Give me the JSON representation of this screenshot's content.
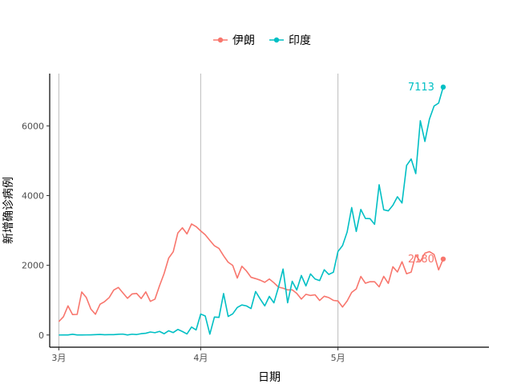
{
  "chart_data": {
    "type": "line",
    "xlabel": "日期",
    "ylabel": "新增确诊病例",
    "x_ticks": [
      {
        "date": "2020-03-01",
        "label": "3月"
      },
      {
        "date": "2020-04-01",
        "label": "4月"
      },
      {
        "date": "2020-05-01",
        "label": "5月"
      }
    ],
    "y_ticks": [
      0,
      2000,
      4000,
      6000
    ],
    "x_range": [
      "2020-02-28",
      "2020-06-03"
    ],
    "ylim": [
      -350,
      7500
    ],
    "grid": "vertical major lines only",
    "legend_position": "top",
    "series": [
      {
        "name": "伊朗",
        "color": "#F8766D",
        "end_label": "2180",
        "points": [
          [
            "2020-03-01",
            385
          ],
          [
            "2020-03-02",
            523
          ],
          [
            "2020-03-03",
            835
          ],
          [
            "2020-03-04",
            586
          ],
          [
            "2020-03-05",
            591
          ],
          [
            "2020-03-06",
            1234
          ],
          [
            "2020-03-07",
            1076
          ],
          [
            "2020-03-08",
            743
          ],
          [
            "2020-03-09",
            595
          ],
          [
            "2020-03-10",
            881
          ],
          [
            "2020-03-11",
            958
          ],
          [
            "2020-03-12",
            1075
          ],
          [
            "2020-03-13",
            1289
          ],
          [
            "2020-03-14",
            1365
          ],
          [
            "2020-03-15",
            1209
          ],
          [
            "2020-03-16",
            1053
          ],
          [
            "2020-03-17",
            1178
          ],
          [
            "2020-03-18",
            1192
          ],
          [
            "2020-03-19",
            1046
          ],
          [
            "2020-03-20",
            1237
          ],
          [
            "2020-03-21",
            966
          ],
          [
            "2020-03-22",
            1028
          ],
          [
            "2020-03-23",
            1411
          ],
          [
            "2020-03-24",
            1762
          ],
          [
            "2020-03-25",
            2206
          ],
          [
            "2020-03-26",
            2389
          ],
          [
            "2020-03-27",
            2926
          ],
          [
            "2020-03-28",
            3076
          ],
          [
            "2020-03-29",
            2901
          ],
          [
            "2020-03-30",
            3186
          ],
          [
            "2020-03-31",
            3110
          ],
          [
            "2020-04-01",
            2987
          ],
          [
            "2020-04-02",
            2875
          ],
          [
            "2020-04-03",
            2715
          ],
          [
            "2020-04-04",
            2560
          ],
          [
            "2020-04-05",
            2483
          ],
          [
            "2020-04-06",
            2274
          ],
          [
            "2020-04-07",
            2089
          ],
          [
            "2020-04-08",
            1997
          ],
          [
            "2020-04-09",
            1634
          ],
          [
            "2020-04-10",
            1972
          ],
          [
            "2020-04-11",
            1837
          ],
          [
            "2020-04-12",
            1657
          ],
          [
            "2020-04-13",
            1617
          ],
          [
            "2020-04-14",
            1574
          ],
          [
            "2020-04-15",
            1512
          ],
          [
            "2020-04-16",
            1606
          ],
          [
            "2020-04-17",
            1499
          ],
          [
            "2020-04-18",
            1374
          ],
          [
            "2020-04-19",
            1343
          ],
          [
            "2020-04-20",
            1294
          ],
          [
            "2020-04-21",
            1297
          ],
          [
            "2020-04-22",
            1194
          ],
          [
            "2020-04-23",
            1030
          ],
          [
            "2020-04-24",
            1168
          ],
          [
            "2020-04-25",
            1134
          ],
          [
            "2020-04-26",
            1153
          ],
          [
            "2020-04-27",
            991
          ],
          [
            "2020-04-28",
            1112
          ],
          [
            "2020-04-29",
            1073
          ],
          [
            "2020-04-30",
            993
          ],
          [
            "2020-05-01",
            976
          ],
          [
            "2020-05-02",
            802
          ],
          [
            "2020-05-03",
            976
          ],
          [
            "2020-05-04",
            1223
          ],
          [
            "2020-05-05",
            1323
          ],
          [
            "2020-05-06",
            1680
          ],
          [
            "2020-05-07",
            1485
          ],
          [
            "2020-05-08",
            1529
          ],
          [
            "2020-05-09",
            1529
          ],
          [
            "2020-05-10",
            1383
          ],
          [
            "2020-05-11",
            1683
          ],
          [
            "2020-05-12",
            1481
          ],
          [
            "2020-05-13",
            1958
          ],
          [
            "2020-05-14",
            1808
          ],
          [
            "2020-05-15",
            2102
          ],
          [
            "2020-05-16",
            1757
          ],
          [
            "2020-05-17",
            1806
          ],
          [
            "2020-05-18",
            2294
          ],
          [
            "2020-05-19",
            2111
          ],
          [
            "2020-05-20",
            2346
          ],
          [
            "2020-05-21",
            2392
          ],
          [
            "2020-05-22",
            2311
          ],
          [
            "2020-05-23",
            1869
          ],
          [
            "2020-05-24",
            2180
          ]
        ]
      },
      {
        "name": "印度",
        "color": "#00BFC4",
        "end_label": "7113",
        "points": [
          [
            "2020-03-01",
            0
          ],
          [
            "2020-03-02",
            2
          ],
          [
            "2020-03-03",
            1
          ],
          [
            "2020-03-04",
            22
          ],
          [
            "2020-03-05",
            2
          ],
          [
            "2020-03-06",
            1
          ],
          [
            "2020-03-07",
            3
          ],
          [
            "2020-03-08",
            5
          ],
          [
            "2020-03-09",
            9
          ],
          [
            "2020-03-10",
            15
          ],
          [
            "2020-03-11",
            8
          ],
          [
            "2020-03-12",
            10
          ],
          [
            "2020-03-13",
            11
          ],
          [
            "2020-03-14",
            21
          ],
          [
            "2020-03-15",
            26
          ],
          [
            "2020-03-16",
            2
          ],
          [
            "2020-03-17",
            23
          ],
          [
            "2020-03-18",
            14
          ],
          [
            "2020-03-19",
            38
          ],
          [
            "2020-03-20",
            50
          ],
          [
            "2020-03-21",
            86
          ],
          [
            "2020-03-22",
            66
          ],
          [
            "2020-03-23",
            103
          ],
          [
            "2020-03-24",
            37
          ],
          [
            "2020-03-25",
            121
          ],
          [
            "2020-03-26",
            70
          ],
          [
            "2020-03-27",
            160
          ],
          [
            "2020-03-28",
            100
          ],
          [
            "2020-03-29",
            30
          ],
          [
            "2020-03-30",
            227
          ],
          [
            "2020-03-31",
            146
          ],
          [
            "2020-04-01",
            601
          ],
          [
            "2020-04-02",
            545
          ],
          [
            "2020-04-03",
            24
          ],
          [
            "2020-04-04",
            515
          ],
          [
            "2020-04-05",
            506
          ],
          [
            "2020-04-06",
            1190
          ],
          [
            "2020-04-07",
            533
          ],
          [
            "2020-04-08",
            606
          ],
          [
            "2020-04-09",
            791
          ],
          [
            "2020-04-10",
            862
          ],
          [
            "2020-04-11",
            835
          ],
          [
            "2020-04-12",
            760
          ],
          [
            "2020-04-13",
            1248
          ],
          [
            "2020-04-14",
            1034
          ],
          [
            "2020-04-15",
            835
          ],
          [
            "2020-04-16",
            1108
          ],
          [
            "2020-04-17",
            922
          ],
          [
            "2020-04-18",
            1371
          ],
          [
            "2020-04-19",
            1893
          ],
          [
            "2020-04-20",
            924
          ],
          [
            "2020-04-21",
            1541
          ],
          [
            "2020-04-22",
            1290
          ],
          [
            "2020-04-23",
            1707
          ],
          [
            "2020-04-24",
            1409
          ],
          [
            "2020-04-25",
            1752
          ],
          [
            "2020-04-26",
            1607
          ],
          [
            "2020-04-27",
            1561
          ],
          [
            "2020-04-28",
            1873
          ],
          [
            "2020-04-29",
            1738
          ],
          [
            "2020-04-30",
            1801
          ],
          [
            "2020-05-01",
            2396
          ],
          [
            "2020-05-02",
            2564
          ],
          [
            "2020-05-03",
            2952
          ],
          [
            "2020-05-04",
            3656
          ],
          [
            "2020-05-05",
            2971
          ],
          [
            "2020-05-06",
            3602
          ],
          [
            "2020-05-07",
            3344
          ],
          [
            "2020-05-08",
            3339
          ],
          [
            "2020-05-09",
            3175
          ],
          [
            "2020-05-10",
            4311
          ],
          [
            "2020-05-11",
            3592
          ],
          [
            "2020-05-12",
            3562
          ],
          [
            "2020-05-13",
            3722
          ],
          [
            "2020-05-14",
            3967
          ],
          [
            "2020-05-15",
            3787
          ],
          [
            "2020-05-16",
            4864
          ],
          [
            "2020-05-17",
            5050
          ],
          [
            "2020-05-18",
            4630
          ],
          [
            "2020-05-19",
            6147
          ],
          [
            "2020-05-20",
            5553
          ],
          [
            "2020-05-21",
            6198
          ],
          [
            "2020-05-22",
            6568
          ],
          [
            "2020-05-23",
            6654
          ],
          [
            "2020-05-24",
            7113
          ]
        ]
      }
    ]
  }
}
